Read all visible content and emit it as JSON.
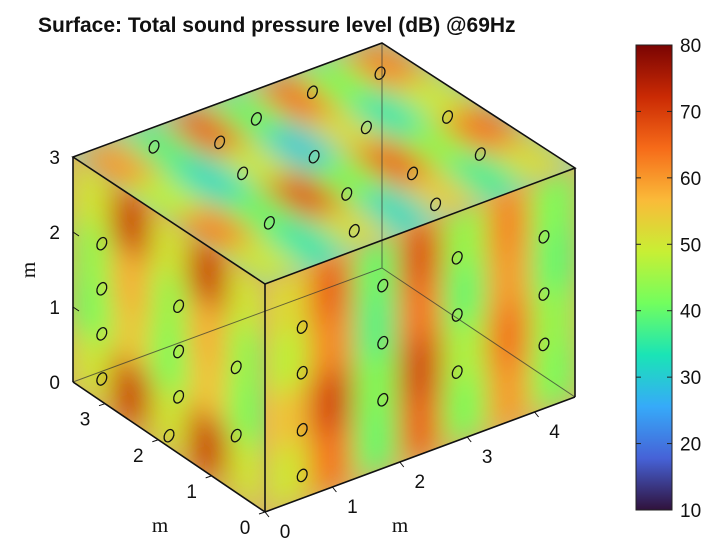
{
  "chart_data": {
    "type": "heatmap",
    "title": "Surface: Total sound pressure level (dB) @69Hz",
    "x_axis": {
      "label": "m",
      "ticks": [
        "0",
        "1",
        "2",
        "3",
        "4"
      ],
      "range": [
        0,
        4.6
      ]
    },
    "y_axis": {
      "label": "m",
      "ticks": [
        "0",
        "1",
        "2",
        "3"
      ],
      "range": [
        0,
        3.6
      ]
    },
    "z_axis": {
      "label": "m",
      "ticks": [
        "0",
        "1",
        "2",
        "3"
      ],
      "range": [
        0,
        3
      ]
    },
    "colorbar": {
      "ticks": [
        "10",
        "20",
        "30",
        "40",
        "50",
        "60",
        "70",
        "80"
      ],
      "range": [
        10,
        80
      ],
      "colormap": [
        "#30123b",
        "#4662d7",
        "#36aaf9",
        "#1ae4b6",
        "#72fe5e",
        "#c8ef34",
        "#faba39",
        "#f66b19",
        "#ca2a04",
        "#7a0403"
      ]
    },
    "surface_levels": {
      "left_face": [
        [
          50,
          72,
          50,
          72,
          50
        ],
        [
          44,
          58,
          44,
          58,
          44
        ],
        [
          42,
          55,
          42,
          56,
          42
        ],
        [
          50,
          72,
          50,
          72,
          50
        ]
      ],
      "front_face": [
        [
          52,
          66,
          40,
          68,
          44,
          62,
          42
        ],
        [
          48,
          62,
          38,
          64,
          40,
          60,
          40
        ],
        [
          55,
          70,
          42,
          70,
          46,
          64,
          44
        ],
        [
          50,
          64,
          40,
          66,
          42,
          60,
          42
        ]
      ],
      "right_face": [
        [
          58,
          40,
          62,
          42,
          74
        ],
        [
          55,
          38,
          60,
          40,
          72
        ],
        [
          58,
          42,
          62,
          44,
          74
        ]
      ],
      "top_face": [
        [
          60,
          38,
          66,
          40,
          64,
          42,
          62
        ],
        [
          48,
          32,
          50,
          30,
          52,
          34,
          50
        ],
        [
          62,
          40,
          68,
          42,
          66,
          44,
          64
        ],
        [
          50,
          34,
          52,
          32,
          54,
          36,
          52
        ]
      ]
    },
    "grid": false
  }
}
